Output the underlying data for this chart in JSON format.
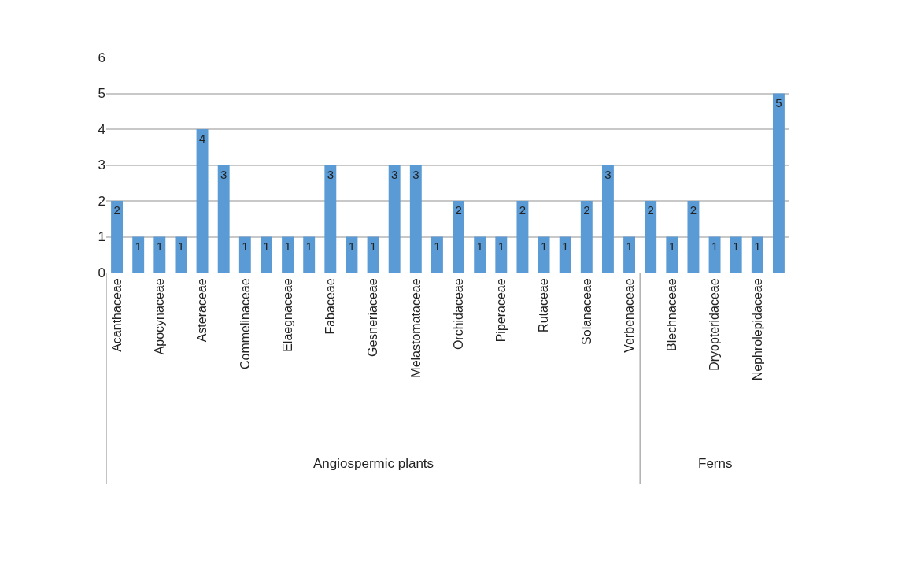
{
  "chart_data": {
    "type": "bar",
    "categories": [
      "Acanthaceae",
      null,
      "Apocynaceae",
      null,
      "Asteraceae",
      null,
      "Commelinaceae",
      null,
      "Elaegnaceae",
      null,
      "Fabaceae",
      null,
      "Gesneriaceae",
      null,
      "Melastomataceae",
      null,
      "Orchidaceae",
      null,
      "Piperaceae",
      null,
      "Rutaceae",
      null,
      "Solanaceae",
      null,
      "Verbenaceae",
      null,
      "Blechnaceae",
      null,
      "Dryopteridaceae",
      null,
      "Nephrolepidaceae",
      null
    ],
    "values": [
      2,
      1,
      1,
      1,
      4,
      3,
      1,
      1,
      1,
      1,
      3,
      1,
      1,
      3,
      3,
      1,
      2,
      1,
      1,
      2,
      1,
      1,
      2,
      3,
      1,
      2,
      1,
      2,
      1,
      1,
      1,
      5
    ],
    "color": "#5b9bd5",
    "ylim": [
      0,
      6
    ],
    "yticks": [
      0,
      1,
      2,
      3,
      4,
      5,
      6
    ],
    "grid": "y",
    "data_labels": true,
    "legend": false,
    "annotations": [
      "Angiospermic plants",
      "Ferns"
    ]
  }
}
